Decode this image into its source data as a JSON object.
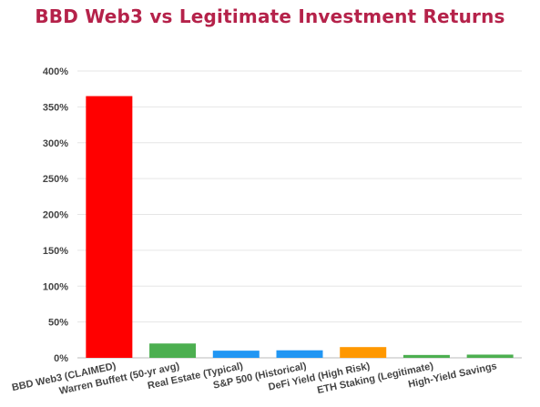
{
  "chart_data": {
    "type": "bar",
    "title": "BBD Web3 vs Legitimate Investment Returns",
    "xlabel": "",
    "ylabel": "",
    "ylim": [
      0,
      400
    ],
    "yticks": [
      0,
      50,
      100,
      150,
      200,
      250,
      300,
      350,
      400
    ],
    "ytick_suffix": "%",
    "grid": true,
    "categories": [
      "BBD Web3 (CLAIMED)",
      "Warren Buffett (50-yr avg)",
      "Real Estate (Typical)",
      "S&P 500 (Historical)",
      "DeFi Yield (High Risk)",
      "ETH Staking (Legitimate)",
      "High-Yield Savings"
    ],
    "values": [
      365,
      20,
      10,
      10.5,
      15,
      4,
      4.5
    ],
    "colors": [
      "#ff0000",
      "#4caf50",
      "#2196f3",
      "#2196f3",
      "#ff9800",
      "#4caf50",
      "#4caf50"
    ]
  }
}
